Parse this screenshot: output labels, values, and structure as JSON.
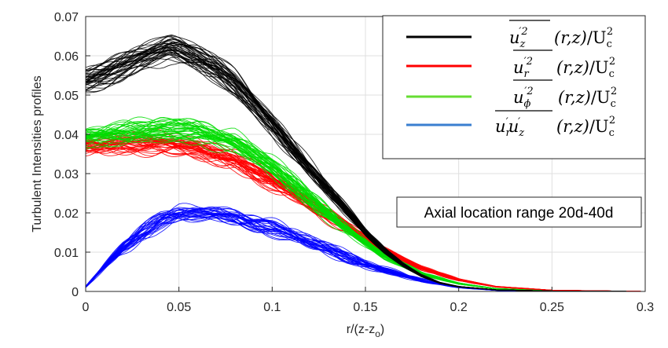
{
  "chart_data": {
    "type": "line",
    "xlabel": "r/(z-z",
    "xlabel_sub": "o",
    "xlabel_close": ")",
    "ylabel": "Turbulent Intensities profiles",
    "xlim": [
      0,
      0.3
    ],
    "ylim": [
      0,
      0.07
    ],
    "grid": true,
    "xticks": [
      0,
      0.05,
      0.1,
      0.15,
      0.2,
      0.25,
      0.3
    ],
    "xtick_labels": [
      "0",
      "0.05",
      "0.1",
      "0.15",
      "0.2",
      "0.25",
      "0.3"
    ],
    "yticks": [
      0,
      0.01,
      0.02,
      0.03,
      0.04,
      0.05,
      0.06,
      0.07
    ],
    "ytick_labels": [
      "0",
      "0.01",
      "0.02",
      "0.03",
      "0.04",
      "0.05",
      "0.06",
      "0.07"
    ],
    "legend_position": "top-right",
    "annotation": "Axial location range 20d-40d",
    "series": [
      {
        "name": "u_z'^2 (r,z)/U_c^2",
        "color": "#000000",
        "curves": 40,
        "x": [
          0,
          0.01,
          0.02,
          0.03,
          0.04,
          0.045,
          0.05,
          0.06,
          0.07,
          0.08,
          0.09,
          0.1,
          0.11,
          0.12,
          0.13,
          0.14,
          0.15,
          0.16,
          0.17,
          0.18,
          0.19,
          0.2,
          0.22,
          0.25,
          0.3
        ],
        "values": [
          0.0535,
          0.0548,
          0.057,
          0.0595,
          0.0615,
          0.0625,
          0.0618,
          0.0595,
          0.0565,
          0.0525,
          0.0475,
          0.0425,
          0.037,
          0.0315,
          0.026,
          0.0205,
          0.015,
          0.0105,
          0.0068,
          0.004,
          0.0022,
          0.0012,
          0.0004,
          0.0001,
          0.0
        ]
      },
      {
        "name": "u_r'^2 (r,z)/U_c^2",
        "color": "#ff0000",
        "curves": 40,
        "x": [
          0,
          0.02,
          0.04,
          0.06,
          0.08,
          0.1,
          0.12,
          0.14,
          0.16,
          0.18,
          0.2,
          0.22,
          0.25,
          0.3
        ],
        "values": [
          0.0375,
          0.0378,
          0.038,
          0.0365,
          0.0335,
          0.0285,
          0.0225,
          0.0165,
          0.0105,
          0.006,
          0.003,
          0.0012,
          0.0003,
          0.0
        ]
      },
      {
        "name": "u_phi'^2 (r,z)/U_c^2",
        "color": "#00dd00",
        "curves": 40,
        "x": [
          0,
          0.02,
          0.04,
          0.06,
          0.08,
          0.1,
          0.12,
          0.14,
          0.16,
          0.18,
          0.2,
          0.22,
          0.25,
          0.3
        ],
        "values": [
          0.0392,
          0.0402,
          0.041,
          0.0405,
          0.0378,
          0.0318,
          0.0235,
          0.0158,
          0.009,
          0.0045,
          0.002,
          0.0007,
          0.0001,
          0.0
        ]
      },
      {
        "name": "u_r' u_z' (r,z)/U_c^2",
        "color": "#0000ff",
        "curves": 30,
        "x": [
          0,
          0.01,
          0.02,
          0.03,
          0.04,
          0.05,
          0.06,
          0.07,
          0.08,
          0.1,
          0.12,
          0.14,
          0.16,
          0.18,
          0.2,
          0.22,
          0.25,
          0.3
        ],
        "values": [
          0.0012,
          0.0065,
          0.0112,
          0.015,
          0.0178,
          0.0195,
          0.02,
          0.0198,
          0.019,
          0.0162,
          0.0125,
          0.0088,
          0.0055,
          0.0028,
          0.0011,
          0.0003,
          0.0,
          0.0
        ]
      }
    ]
  }
}
